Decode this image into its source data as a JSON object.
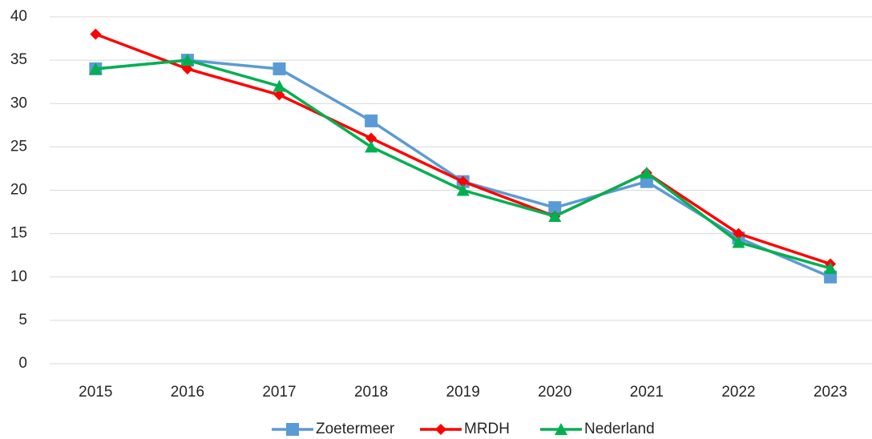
{
  "chart_data": {
    "type": "line",
    "categories": [
      "2015",
      "2016",
      "2017",
      "2018",
      "2019",
      "2020",
      "2021",
      "2022",
      "2023"
    ],
    "series": [
      {
        "name": "Zoetermeer",
        "color": "#5b9bd5",
        "marker": "square",
        "values": [
          34,
          35,
          34,
          28,
          21,
          18,
          21,
          14.5,
          10
        ]
      },
      {
        "name": "MRDH",
        "color": "#ff0000",
        "marker": "diamond",
        "values": [
          38,
          34,
          31,
          26,
          21,
          17,
          22,
          15,
          11.5
        ]
      },
      {
        "name": "Nederland",
        "color": "#00b050",
        "marker": "triangle",
        "values": [
          34,
          35,
          32,
          25,
          20,
          17,
          22,
          14,
          11
        ]
      }
    ],
    "ylim": [
      0,
      40
    ],
    "yticks": [
      0,
      5,
      10,
      15,
      20,
      25,
      30,
      35,
      40
    ],
    "grid": true,
    "legend": "bottom"
  }
}
